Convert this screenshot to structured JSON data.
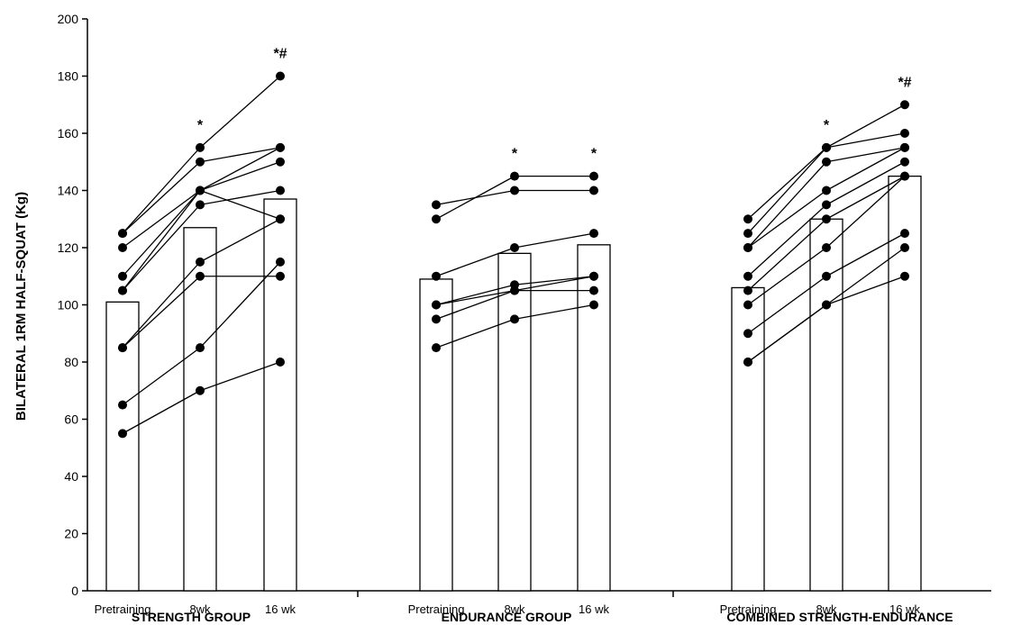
{
  "chart_data": {
    "type": "bar",
    "ylabel": "BILATERAL 1RM HALF-SQUAT (Kg)",
    "ylim": [
      0,
      200
    ],
    "yticks": [
      0,
      20,
      40,
      60,
      80,
      100,
      120,
      140,
      160,
      180,
      200
    ],
    "colors": {
      "bar_fill": "#ffffff",
      "stroke": "#000000",
      "marker": "#000000"
    },
    "groups": [
      {
        "name": "STRENGTH GROUP",
        "categories": [
          "Pretraining",
          "8wk",
          "16 wk"
        ],
        "bar_values": [
          101,
          127,
          137
        ],
        "annotations": [
          "",
          "*",
          "*#"
        ],
        "subjects": [
          [
            125,
            155,
            180
          ],
          [
            125,
            150,
            155
          ],
          [
            120,
            140,
            155
          ],
          [
            110,
            140,
            150
          ],
          [
            105,
            135,
            140
          ],
          [
            105,
            140,
            130
          ],
          [
            85,
            115,
            130
          ],
          [
            85,
            110,
            110
          ],
          [
            65,
            85,
            115
          ],
          [
            55,
            70,
            80
          ]
        ]
      },
      {
        "name": "ENDURANCE GROUP",
        "categories": [
          "Pretraining",
          "8wk",
          "16 wk"
        ],
        "bar_values": [
          109,
          118,
          121
        ],
        "annotations": [
          "",
          "*",
          "*"
        ],
        "subjects": [
          [
            135,
            140,
            140
          ],
          [
            130,
            145,
            145
          ],
          [
            110,
            120,
            125
          ],
          [
            100,
            105,
            105
          ],
          [
            100,
            107,
            110
          ],
          [
            95,
            105,
            110
          ],
          [
            85,
            95,
            100
          ]
        ]
      },
      {
        "name": "COMBINED STRENGTH-ENDURANCE",
        "categories": [
          "Pretraining",
          "8wk",
          "16 wk"
        ],
        "bar_values": [
          106,
          130,
          145
        ],
        "annotations": [
          "",
          "*",
          "*#"
        ],
        "subjects": [
          [
            130,
            155,
            170
          ],
          [
            125,
            155,
            160
          ],
          [
            120,
            150,
            155
          ],
          [
            120,
            140,
            155
          ],
          [
            110,
            135,
            150
          ],
          [
            105,
            130,
            145
          ],
          [
            100,
            120,
            145
          ],
          [
            90,
            110,
            125
          ],
          [
            80,
            100,
            120
          ],
          [
            80,
            100,
            110
          ]
        ]
      }
    ]
  }
}
